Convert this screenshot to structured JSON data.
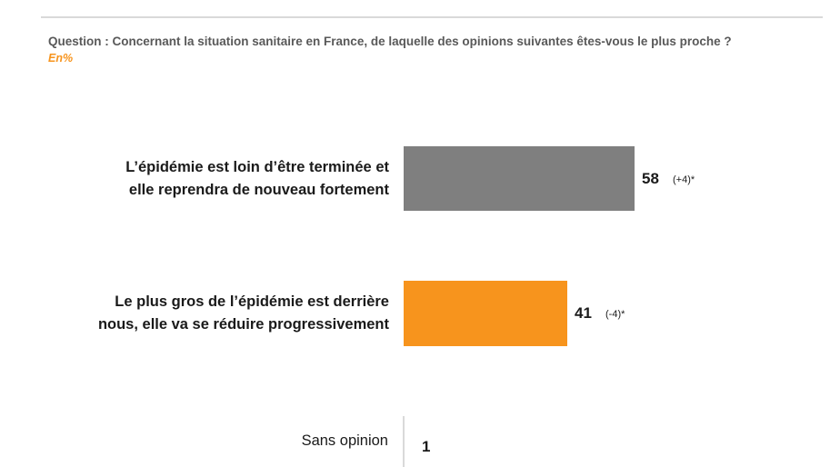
{
  "header": {
    "question": "Question : Concernant la situation sanitaire en France, de laquelle des opinions suivantes êtes-vous le plus proche ?",
    "unit": "En%"
  },
  "chart_data": {
    "type": "bar",
    "orientation": "horizontal",
    "categories": [
      [
        "L’épidémie est loin d’être terminée et",
        "elle reprendra de nouveau fortement"
      ],
      [
        "Le plus gros de l’épidémie est derrière",
        "nous, elle va se réduire progressivement"
      ],
      [
        "Sans opinion"
      ]
    ],
    "values": [
      58,
      41,
      1
    ],
    "value_labels": [
      "58",
      "41",
      "1"
    ],
    "changes": [
      "(+4)*",
      "(-4)*",
      ""
    ],
    "colors": [
      "#7f7f7f",
      "#f7941d",
      "#7f7f7f"
    ],
    "xlim": [
      0,
      100
    ],
    "grid": false,
    "legend": "none"
  }
}
